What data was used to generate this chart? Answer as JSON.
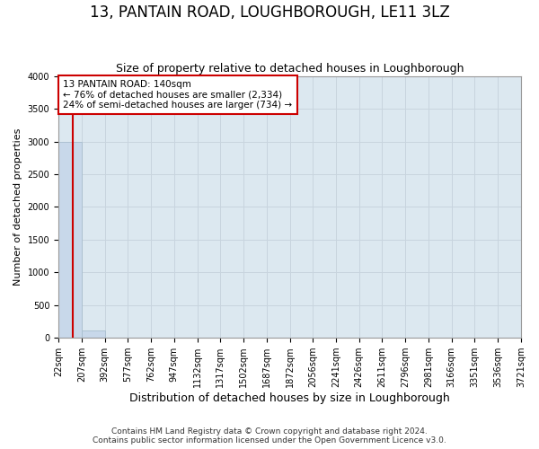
{
  "title": "13, PANTAIN ROAD, LOUGHBOROUGH, LE11 3LZ",
  "subtitle": "Size of property relative to detached houses in Loughborough",
  "xlabel": "Distribution of detached houses by size in Loughborough",
  "ylabel": "Number of detached properties",
  "footnote1": "Contains HM Land Registry data © Crown copyright and database right 2024.",
  "footnote2": "Contains public sector information licensed under the Open Government Licence v3.0.",
  "bar_edges": [
    22,
    207,
    392,
    577,
    762,
    947,
    1132,
    1317,
    1502,
    1687,
    1872,
    2056,
    2241,
    2426,
    2611,
    2796,
    2981,
    3166,
    3351,
    3536,
    3721
  ],
  "bar_heights": [
    3000,
    110,
    5,
    2,
    1,
    1,
    1,
    0,
    0,
    0,
    0,
    0,
    0,
    0,
    0,
    0,
    0,
    0,
    0,
    0
  ],
  "bar_color": "#c8d8ea",
  "bar_edge_color": "#a8bece",
  "property_size": 140,
  "red_line_color": "#cc0000",
  "annotation_line1": "13 PANTAIN ROAD: 140sqm",
  "annotation_line2": "← 76% of detached houses are smaller (2,334)",
  "annotation_line3": "24% of semi-detached houses are larger (734) →",
  "annotation_text_color": "#000000",
  "ylim": [
    0,
    4000
  ],
  "yticks": [
    0,
    500,
    1000,
    1500,
    2000,
    2500,
    3000,
    3500,
    4000
  ],
  "grid_color": "#c8d4de",
  "bg_color": "#dce8f0",
  "title_fontsize": 12,
  "subtitle_fontsize": 9,
  "ylabel_fontsize": 8,
  "xlabel_fontsize": 9,
  "tick_fontsize": 7,
  "footnote_fontsize": 6.5
}
